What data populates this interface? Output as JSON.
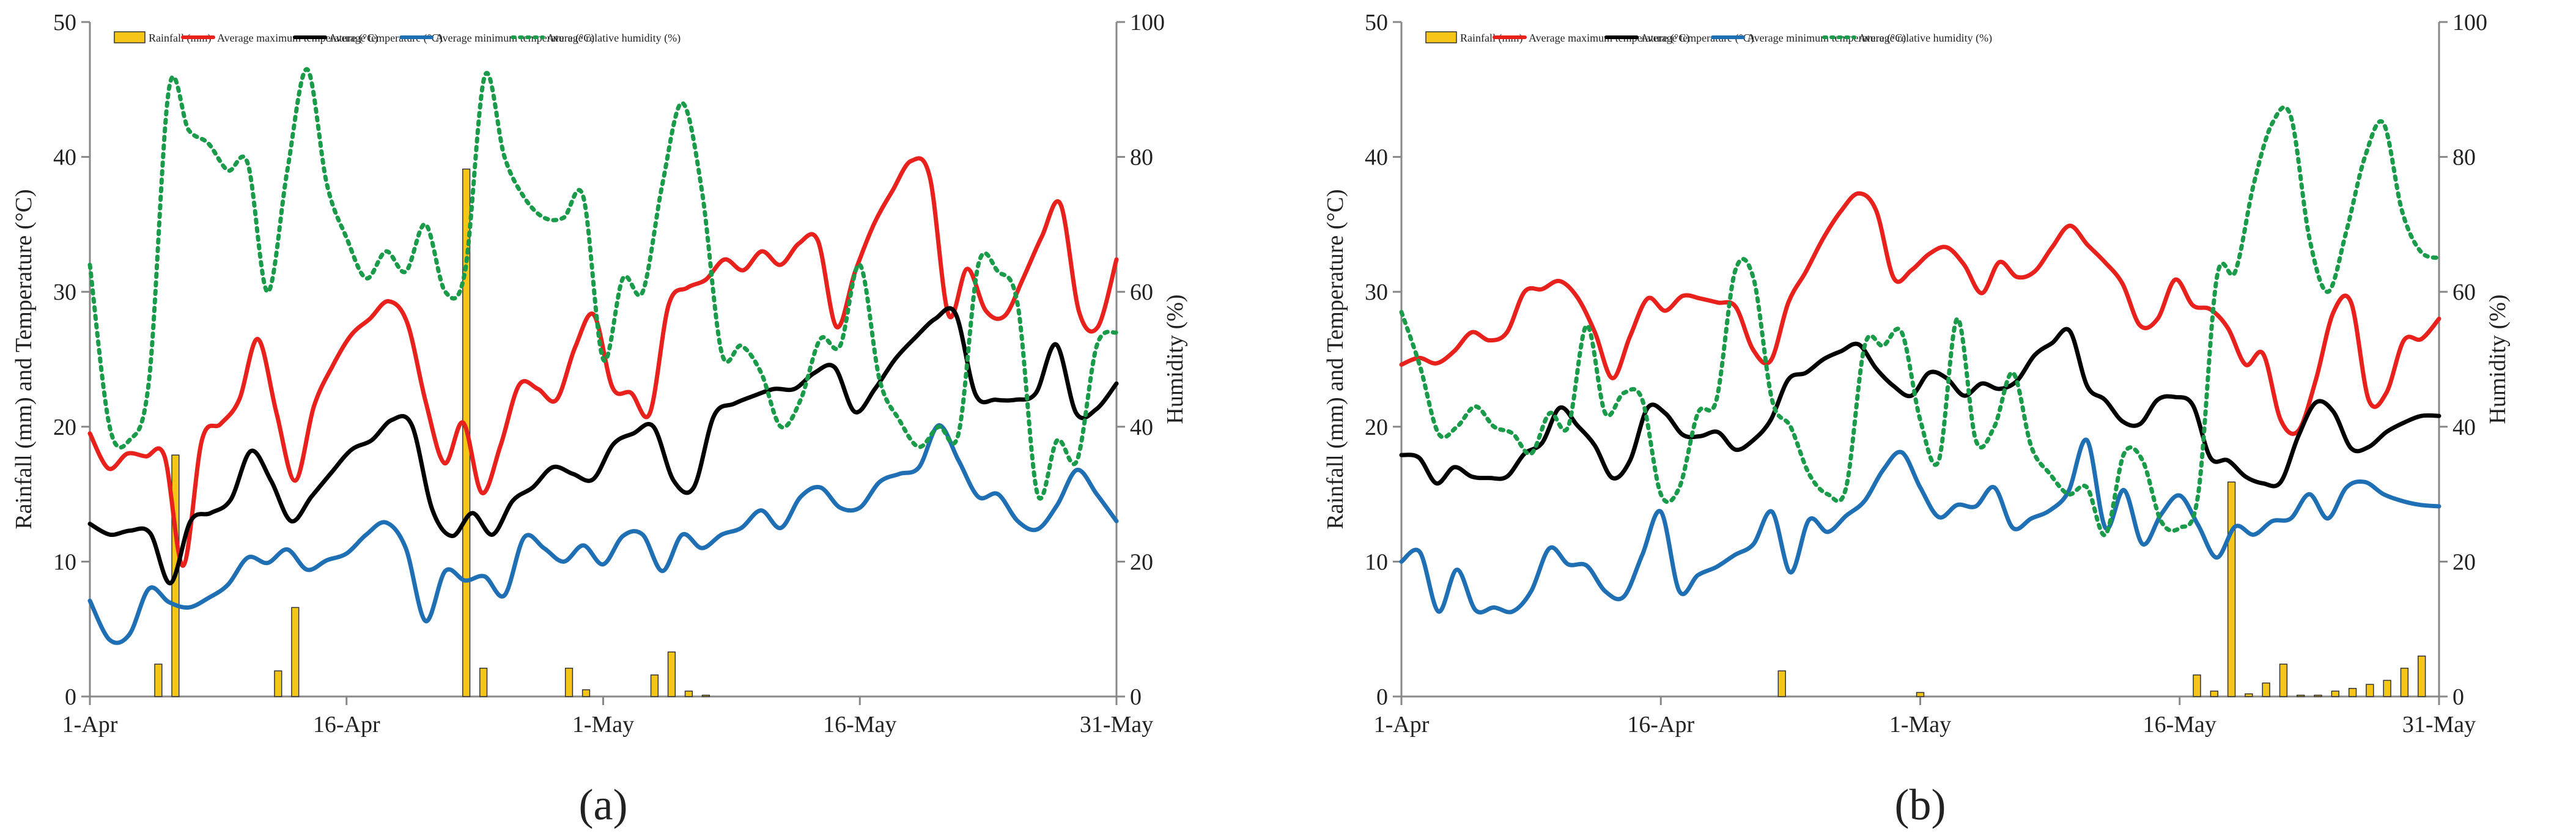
{
  "chart_data": [
    {
      "type": "line",
      "panel_label": "(a)",
      "xlabel": "",
      "ylabel": "Rainfall (mm) and Temperature (°C)",
      "y2label": "Humidity (%)",
      "xlim": [
        "1-Apr",
        "31-May"
      ],
      "ylim": [
        0,
        50
      ],
      "y2lim": [
        0,
        100
      ],
      "xticks": [
        "1-Apr",
        "16-Apr",
        "1-May",
        "16-May",
        "31-May"
      ],
      "yticks": [
        0,
        10,
        20,
        30,
        40,
        50
      ],
      "y2ticks": [
        0,
        20,
        40,
        60,
        80,
        100
      ],
      "grid": false,
      "legend": "top",
      "x": [
        "1-Apr",
        "2-Apr",
        "3-Apr",
        "4-Apr",
        "5-Apr",
        "6-Apr",
        "7-Apr",
        "8-Apr",
        "9-Apr",
        "10-Apr",
        "11-Apr",
        "12-Apr",
        "13-Apr",
        "14-Apr",
        "15-Apr",
        "16-Apr",
        "17-Apr",
        "18-Apr",
        "19-Apr",
        "20-Apr",
        "21-Apr",
        "22-Apr",
        "23-Apr",
        "24-Apr",
        "25-Apr",
        "26-Apr",
        "27-Apr",
        "28-Apr",
        "29-Apr",
        "30-Apr",
        "1-May",
        "2-May",
        "3-May",
        "4-May",
        "5-May",
        "6-May",
        "7-May",
        "8-May",
        "9-May",
        "10-May",
        "11-May",
        "12-May",
        "13-May",
        "14-May",
        "15-May",
        "16-May",
        "17-May",
        "18-May",
        "19-May",
        "20-May",
        "21-May",
        "22-May",
        "23-May",
        "24-May",
        "25-May",
        "26-May",
        "27-May",
        "28-May",
        "29-May",
        "30-May",
        "31-May"
      ],
      "series": [
        {
          "name": "Rainfall  (mm)",
          "kind": "bar",
          "axis": "left",
          "color": "#f5c518",
          "values": [
            0,
            0,
            0,
            0,
            2.4,
            17.9,
            0,
            0,
            0,
            0,
            0,
            1.9,
            6.6,
            0,
            0,
            0,
            0,
            0,
            0,
            0,
            0,
            0,
            39.1,
            2.1,
            0,
            0,
            0,
            0,
            2.1,
            0.5,
            0,
            0,
            0,
            1.6,
            3.3,
            0.4,
            0.1,
            0,
            0,
            0,
            0,
            0,
            0,
            0,
            0,
            0,
            0,
            0,
            0,
            0,
            0,
            0,
            0,
            0,
            0,
            0,
            0,
            0,
            0,
            0,
            0
          ]
        },
        {
          "name": "Average maximum temperature (°C)",
          "kind": "line",
          "axis": "left",
          "color": "#e8211d",
          "values": [
            19.5,
            16.9,
            18.0,
            17.8,
            17.8,
            9.7,
            19.0,
            20.2,
            22.0,
            26.5,
            21.0,
            16.0,
            21.5,
            24.5,
            26.8,
            28.0,
            29.3,
            27.7,
            21.8,
            17.3,
            20.3,
            15.1,
            18.6,
            23.1,
            22.8,
            22.0,
            25.9,
            28.3,
            22.9,
            22.5,
            21.0,
            29.0,
            30.3,
            30.9,
            32.4,
            31.6,
            33.0,
            32.0,
            33.6,
            33.8,
            27.4,
            31.5,
            35.0,
            37.5,
            39.7,
            38.5,
            28.3,
            31.7,
            28.6,
            28.2,
            31.0,
            34.1,
            36.5,
            28.5,
            27.4,
            32.4,
            0,
            0,
            0,
            0,
            0
          ]
        },
        {
          "name": "Average temperature (°C)",
          "kind": "line",
          "axis": "left",
          "color": "#000000",
          "values": [
            12.8,
            12.0,
            12.3,
            12.1,
            8.4,
            13.0,
            13.6,
            14.6,
            18.2,
            16.0,
            13.0,
            14.8,
            16.6,
            18.3,
            19.0,
            20.5,
            20.1,
            13.9,
            11.9,
            13.6,
            12.0,
            14.5,
            15.5,
            17.0,
            16.5,
            16.1,
            18.7,
            19.5,
            20.0,
            16.0,
            15.5,
            20.8,
            21.7,
            22.3,
            22.8,
            22.8,
            24.0,
            24.4,
            21.1,
            22.8,
            25.0,
            26.6,
            28.0,
            28.4,
            22.4,
            22.0,
            22.0,
            22.5,
            26.1,
            21.0,
            21.3,
            23.2,
            0,
            0,
            0,
            0,
            0,
            0,
            0,
            0,
            0
          ]
        },
        {
          "name": "Average minimum temperature (°C)",
          "kind": "line",
          "axis": "left",
          "color": "#1f6fb4",
          "values": [
            7.1,
            4.2,
            4.6,
            8.0,
            7.0,
            6.6,
            7.3,
            8.3,
            10.3,
            9.9,
            10.9,
            9.4,
            10.1,
            10.6,
            12.0,
            12.9,
            11.0,
            5.6,
            9.3,
            8.6,
            8.9,
            7.5,
            11.8,
            11.0,
            10.0,
            11.2,
            9.8,
            11.9,
            12.0,
            9.3,
            12.0,
            11.0,
            12.0,
            12.5,
            13.8,
            12.5,
            14.8,
            15.5,
            14.0,
            14.0,
            15.9,
            16.5,
            17.0,
            20.1,
            17.5,
            14.8,
            15.0,
            13.0,
            12.4,
            14.2,
            16.8,
            15.0,
            13.0,
            0,
            0,
            0,
            0,
            0,
            0,
            0,
            0
          ]
        },
        {
          "name": "Average relative humidity (%)",
          "kind": "line",
          "axis": "right",
          "color": "#1a9b4a",
          "values": [
            64,
            40,
            38,
            47,
            90,
            84,
            82,
            78,
            79,
            60,
            78,
            93,
            76,
            68,
            62,
            66,
            63,
            70,
            60,
            63,
            92,
            80,
            74,
            71,
            71,
            74,
            50,
            62,
            60,
            76,
            88,
            75,
            51,
            52,
            48,
            40,
            44,
            53,
            52,
            64,
            47,
            41,
            37,
            40,
            39,
            64,
            63,
            58,
            30,
            38,
            35,
            52,
            54,
            0,
            0,
            0,
            0,
            0,
            0,
            0,
            0
          ]
        }
      ]
    },
    {
      "type": "line",
      "panel_label": "(b)",
      "xlabel": "",
      "ylabel": "Rainfall (mm) and Temperature (°C)",
      "y2label": "Humidity (%)",
      "xlim": [
        "1-Apr",
        "31-May"
      ],
      "ylim": [
        0,
        50
      ],
      "y2lim": [
        0,
        100
      ],
      "xticks": [
        "1-Apr",
        "16-Apr",
        "1-May",
        "16-May",
        "31-May"
      ],
      "yticks": [
        0,
        10,
        20,
        30,
        40,
        50
      ],
      "y2ticks": [
        0,
        20,
        40,
        60,
        80,
        100
      ],
      "grid": false,
      "legend": "top",
      "x": [
        "1-Apr",
        "2-Apr",
        "3-Apr",
        "4-Apr",
        "5-Apr",
        "6-Apr",
        "7-Apr",
        "8-Apr",
        "9-Apr",
        "10-Apr",
        "11-Apr",
        "12-Apr",
        "13-Apr",
        "14-Apr",
        "15-Apr",
        "16-Apr",
        "17-Apr",
        "18-Apr",
        "19-Apr",
        "20-Apr",
        "21-Apr",
        "22-Apr",
        "23-Apr",
        "24-Apr",
        "25-Apr",
        "26-Apr",
        "27-Apr",
        "28-Apr",
        "29-Apr",
        "30-Apr",
        "1-May",
        "2-May",
        "3-May",
        "4-May",
        "5-May",
        "6-May",
        "7-May",
        "8-May",
        "9-May",
        "10-May",
        "11-May",
        "12-May",
        "13-May",
        "14-May",
        "15-May",
        "16-May",
        "17-May",
        "18-May",
        "19-May",
        "20-May",
        "21-May",
        "22-May",
        "23-May",
        "24-May",
        "25-May",
        "26-May",
        "27-May",
        "28-May",
        "29-May",
        "30-May",
        "31-May"
      ],
      "series": [
        {
          "name": "Rainfall  (mm)",
          "kind": "bar",
          "axis": "left",
          "color": "#f5c518",
          "values": [
            0,
            0,
            0,
            0,
            0,
            0,
            0,
            0,
            0,
            0,
            0,
            0,
            0,
            0,
            0,
            0,
            0,
            0,
            0,
            0,
            0,
            0,
            1.9,
            0,
            0,
            0,
            0,
            0,
            0,
            0,
            0.3,
            0,
            0,
            0,
            0,
            0,
            0,
            0,
            0,
            0,
            0,
            0,
            0,
            0,
            0,
            0,
            1.6,
            0.4,
            15.9,
            0.2,
            1.0,
            2.4,
            0.1,
            0.1,
            0.4,
            0.6,
            0.9,
            1.2,
            2.1,
            3.0,
            0
          ]
        },
        {
          "name": "Average maximum temperature (°C)",
          "kind": "line",
          "axis": "left",
          "color": "#e8211d",
          "values": [
            24.6,
            25.1,
            24.7,
            25.6,
            27.0,
            26.4,
            27.0,
            30.0,
            30.2,
            30.8,
            29.6,
            27.0,
            23.6,
            26.7,
            29.5,
            28.6,
            29.7,
            29.5,
            29.2,
            28.9,
            25.7,
            24.9,
            29.2,
            31.5,
            34.0,
            36.0,
            37.3,
            36.0,
            31.0,
            31.6,
            32.8,
            33.3,
            32.0,
            29.9,
            32.2,
            31.1,
            31.5,
            33.3,
            34.9,
            33.5,
            32.2,
            30.6,
            27.5,
            28.0,
            30.9,
            29.0,
            28.7,
            27.3,
            24.6,
            25.4,
            20.5,
            19.7,
            23.5,
            28.5,
            29.2,
            22.0,
            22.5,
            26.4,
            26.5,
            28.0,
            0
          ]
        },
        {
          "name": "Average temperature (°C)",
          "kind": "line",
          "axis": "left",
          "color": "#000000",
          "values": [
            17.9,
            17.7,
            15.8,
            17.0,
            16.3,
            16.2,
            16.3,
            18.0,
            18.8,
            21.4,
            20.1,
            18.6,
            16.2,
            17.5,
            21.4,
            21.0,
            19.4,
            19.3,
            19.6,
            18.3,
            19.0,
            20.5,
            23.5,
            24.0,
            25.0,
            25.6,
            26.1,
            24.3,
            23.0,
            22.3,
            24.0,
            23.6,
            22.3,
            23.2,
            22.8,
            23.4,
            25.3,
            26.2,
            27.1,
            23.0,
            22.0,
            20.4,
            20.2,
            22.0,
            22.2,
            21.6,
            17.7,
            17.5,
            16.3,
            15.8,
            15.9,
            19.3,
            21.8,
            21.1,
            18.4,
            18.5,
            19.6,
            20.3,
            20.8,
            20.8,
            0
          ]
        },
        {
          "name": "Average minimum temperature (°C)",
          "kind": "line",
          "axis": "left",
          "color": "#1f6fb4",
          "values": [
            10.0,
            10.7,
            6.3,
            9.4,
            6.4,
            6.6,
            6.3,
            7.8,
            11.0,
            9.8,
            9.7,
            7.8,
            7.4,
            10.5,
            13.7,
            7.8,
            9.0,
            9.6,
            10.5,
            11.3,
            13.7,
            9.2,
            13.1,
            12.2,
            13.4,
            14.5,
            16.8,
            18.1,
            15.5,
            13.3,
            14.2,
            14.1,
            15.5,
            12.5,
            13.2,
            13.8,
            15.2,
            19.0,
            12.5,
            15.3,
            11.3,
            13.5,
            14.9,
            12.7,
            10.3,
            12.6,
            12.0,
            13.0,
            13.2,
            15.0,
            13.2,
            15.5,
            15.9,
            15.0,
            14.5,
            14.2,
            14.1,
            0,
            0,
            0,
            0
          ]
        },
        {
          "name": "Average relative humidity (%)",
          "kind": "line",
          "axis": "right",
          "color": "#1a9b4a",
          "values": [
            57,
            49,
            39,
            40,
            43,
            40,
            39,
            36,
            42,
            40,
            55,
            42,
            45,
            44,
            30,
            31,
            42,
            44,
            63,
            62,
            44,
            40,
            33,
            30,
            31,
            52,
            52,
            54,
            41,
            35,
            56,
            38,
            40,
            48,
            37,
            33,
            30,
            31,
            24,
            36,
            35,
            26,
            25,
            30,
            62,
            63,
            76,
            85,
            86,
            68,
            60,
            69,
            80,
            85,
            72,
            66,
            65,
            0,
            0,
            0,
            0
          ]
        }
      ]
    }
  ]
}
